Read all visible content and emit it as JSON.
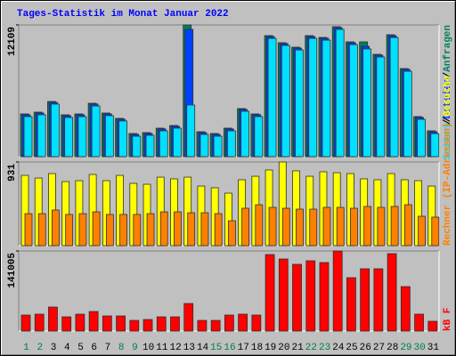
{
  "chart_data": [
    {
      "type": "bar",
      "title": "Tages-Statistik im Monat Januar 2022",
      "ylim": [
        0,
        12109
      ],
      "yticks": [
        12109
      ],
      "legend_position": "top-right",
      "legend_separator": "/",
      "series": [
        {
          "name": "Anfragen",
          "color": "#00805c",
          "values": [
            3927,
            4091,
            5072,
            3845,
            3927,
            4909,
            4009,
            3518,
            2127,
            2209,
            2618,
            2864,
            12109,
            2291,
            2127,
            2618,
            4418,
            3927,
            11126,
            10472,
            10063,
            11126,
            10963,
            11945,
            10553,
            10553,
            9408,
            11208,
            8099,
            3682,
            2373
          ]
        },
        {
          "name": "Dateien",
          "color": "#0040ff",
          "values": [
            3850,
            4010,
            4990,
            3770,
            3850,
            4830,
            3930,
            3440,
            2050,
            2130,
            2540,
            2790,
            11700,
            2210,
            2050,
            2540,
            4340,
            3850,
            11040,
            10390,
            9980,
            11040,
            10880,
            11860,
            10470,
            10145,
            9330,
            11120,
            8020,
            3600,
            2290
          ]
        },
        {
          "name": "Seiten",
          "color": "#00e0ff",
          "values": [
            3680,
            3850,
            4830,
            3600,
            3680,
            4660,
            3770,
            3280,
            1880,
            1960,
            2370,
            2620,
            4745,
            2040,
            1880,
            2370,
            4170,
            3680,
            10870,
            10220,
            9810,
            10870,
            10710,
            11700,
            10300,
            9900,
            9160,
            10950,
            7850,
            3430,
            2120
          ]
        }
      ]
    },
    {
      "type": "bar",
      "ylim": [
        0,
        931
      ],
      "yticks": [
        931
      ],
      "legend_position": "bottom-right",
      "legend_separator": "/",
      "series": [
        {
          "name": "Besuche",
          "color": "#ffff00",
          "values": [
            782,
            752,
            802,
            713,
            723,
            792,
            723,
            782,
            693,
            683,
            762,
            743,
            762,
            663,
            644,
            584,
            733,
            772,
            842,
            931,
            832,
            772,
            822,
            812,
            802,
            743,
            733,
            802,
            733,
            723,
            663
          ]
        },
        {
          "name": "Rechner (IP-Adressen)",
          "color": "#ff8000",
          "values": [
            356,
            356,
            396,
            347,
            356,
            376,
            347,
            347,
            347,
            356,
            376,
            376,
            366,
            366,
            356,
            277,
            416,
            455,
            426,
            416,
            406,
            406,
            426,
            426,
            416,
            436,
            426,
            436,
            455,
            327,
            317
          ]
        }
      ]
    },
    {
      "type": "bar",
      "ylim": [
        0,
        141005
      ],
      "yticks": [
        141005
      ],
      "legend_position": "bottom-right",
      "categories": [
        "1",
        "2",
        "3",
        "4",
        "5",
        "6",
        "7",
        "8",
        "9",
        "10",
        "11",
        "12",
        "13",
        "14",
        "15",
        "16",
        "17",
        "18",
        "19",
        "20",
        "21",
        "22",
        "23",
        "24",
        "25",
        "26",
        "27",
        "28",
        "29",
        "30",
        "31"
      ],
      "category_colors": [
        "#008040",
        "#008040",
        "#000000",
        "#000000",
        "#000000",
        "#000000",
        "#000000",
        "#008040",
        "#008040",
        "#000000",
        "#000000",
        "#000000",
        "#000000",
        "#000000",
        "#008040",
        "#008040",
        "#000000",
        "#000000",
        "#000000",
        "#000000",
        "#000000",
        "#008040",
        "#008040",
        "#000000",
        "#000000",
        "#000000",
        "#000000",
        "#000000",
        "#008040",
        "#008040",
        "#000000"
      ],
      "series": [
        {
          "name": "kB F",
          "color": "#ff0000",
          "values": [
            28200,
            29767,
            42300,
            25067,
            29767,
            34467,
            26633,
            26633,
            18800,
            20367,
            25067,
            25067,
            48567,
            18800,
            18800,
            28200,
            29767,
            28200,
            134736,
            126903,
            117503,
            123769,
            120636,
            141005,
            94002,
            109669,
            109669,
            136303,
            78335,
            29767,
            17234
          ]
        }
      ]
    }
  ]
}
